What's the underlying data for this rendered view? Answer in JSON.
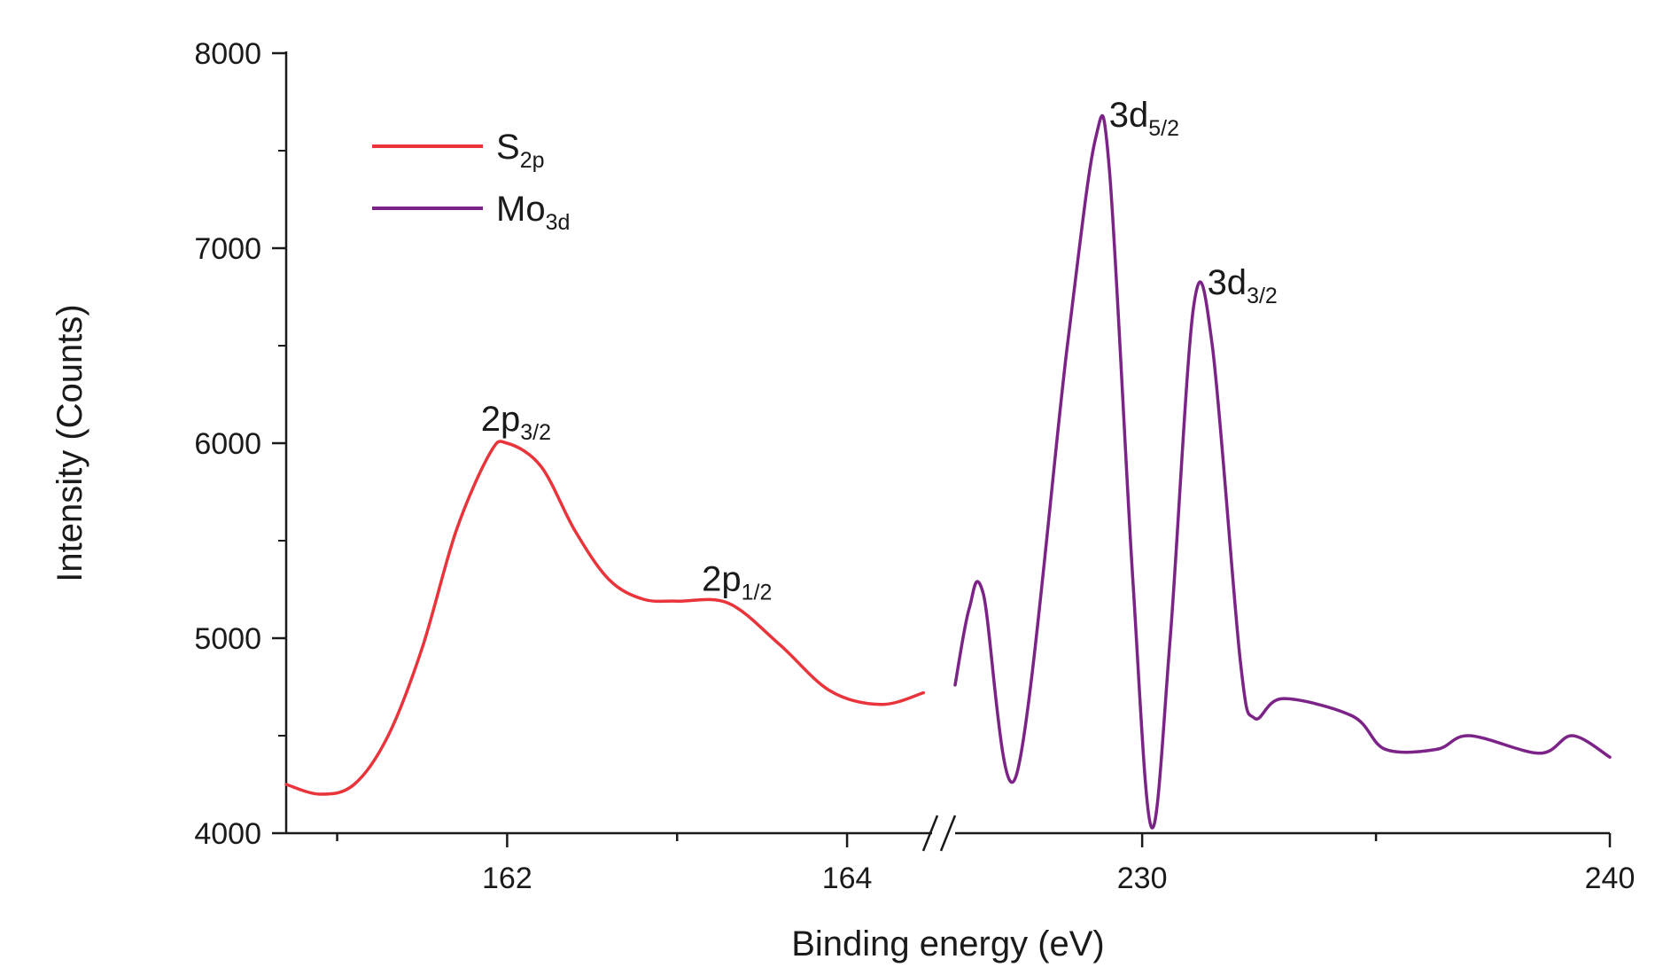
{
  "chart_data": {
    "type": "line",
    "xlabel": "Binding energy (eV)",
    "ylabel": "Intensity (Counts)",
    "ylim": [
      4000,
      8000
    ],
    "y_ticks": [
      "4000",
      "5000",
      "6000",
      "7000",
      "8000"
    ],
    "x_axis_broken": true,
    "segments": [
      {
        "series": "S2p",
        "xlim": [
          160.7,
          164.5
        ],
        "x_ticks": [
          "162",
          "164"
        ]
      },
      {
        "series": "Mo3d",
        "xlim": [
          226.0,
          240.0
        ],
        "x_ticks": [
          "230",
          "240"
        ]
      }
    ],
    "legend_position": "top-left",
    "series": [
      {
        "name_main": "S",
        "name_sub": "2p",
        "color": "#e8343a",
        "x": [
          160.7,
          160.9,
          161.1,
          161.3,
          161.5,
          161.7,
          161.9,
          162.0,
          162.2,
          162.4,
          162.6,
          162.8,
          163.0,
          163.3,
          163.6,
          163.9,
          164.2,
          164.45
        ],
        "y": [
          4250,
          4200,
          4250,
          4500,
          4950,
          5550,
          5950,
          6000,
          5880,
          5550,
          5300,
          5200,
          5190,
          5180,
          4970,
          4730,
          4660,
          4720
        ]
      },
      {
        "name_main": "Mo",
        "name_sub": "3d",
        "color": "#7b2387",
        "x": [
          226.0,
          226.3,
          226.6,
          227.3,
          228.4,
          229.0,
          229.3,
          229.8,
          230.2,
          230.6,
          231.1,
          231.5,
          232.1,
          232.4,
          233.0,
          234.5,
          235.2,
          236.3,
          237.0,
          238.5,
          239.2,
          240.0
        ],
        "y": [
          4760,
          5150,
          5230,
          4290,
          6500,
          7560,
          7400,
          5300,
          4030,
          5000,
          6700,
          6500,
          4880,
          4590,
          4690,
          4600,
          4430,
          4430,
          4500,
          4410,
          4500,
          4390
        ]
      }
    ],
    "annotations": [
      {
        "main": "2p",
        "sub": "3/2",
        "x": 162.0,
        "y": 6000,
        "segment": 0
      },
      {
        "main": "2p",
        "sub": "1/2",
        "x": 163.3,
        "y": 5180,
        "segment": 0
      },
      {
        "main": "3d",
        "sub": "5/2",
        "x": 229.0,
        "y": 7560,
        "segment": 1
      },
      {
        "main": "3d",
        "sub": "3/2",
        "x": 231.1,
        "y": 6700,
        "segment": 1
      }
    ]
  }
}
